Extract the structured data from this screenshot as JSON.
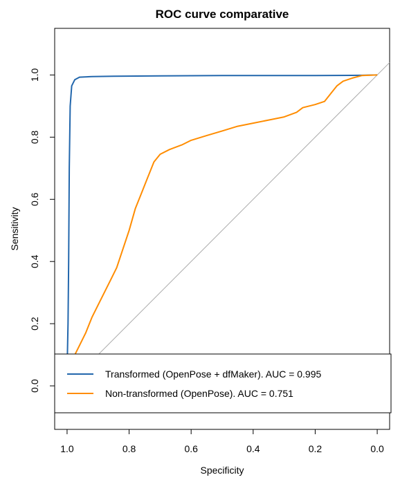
{
  "chart_data": {
    "type": "line",
    "title": "ROC curve comparative",
    "xlabel": "Specificity",
    "ylabel": "Sensitivity",
    "xlim": [
      1.04,
      -0.04
    ],
    "ylim": [
      -0.14,
      1.15
    ],
    "x_reversed_display": true,
    "x_ticks": [
      0.0,
      0.2,
      0.4,
      0.6,
      0.8,
      1.0
    ],
    "x_tick_labels": [
      "0.0",
      "0.2",
      "0.4",
      "0.6",
      "0.8",
      "1.0"
    ],
    "y_ticks": [
      0.0,
      0.2,
      0.4,
      0.6,
      0.8,
      1.0
    ],
    "y_tick_labels": [
      "0.0",
      "0.2",
      "0.4",
      "0.6",
      "0.8",
      "1.0"
    ],
    "reference_line": {
      "color": "#aaaaaa",
      "from": [
        1.0,
        0.0
      ],
      "to": [
        0.0,
        1.0
      ]
    },
    "grid": false,
    "legend_position": "bottom",
    "series": [
      {
        "name": "Transformed (OpenPose + dfMaker). AUC =  0.995",
        "color": "#2166ac",
        "points": [
          [
            0.0,
            1.0
          ],
          [
            0.05,
            0.999
          ],
          [
            0.2,
            0.998
          ],
          [
            0.5,
            0.998
          ],
          [
            0.7,
            0.997
          ],
          [
            0.85,
            0.996
          ],
          [
            0.92,
            0.995
          ],
          [
            0.96,
            0.993
          ],
          [
            0.975,
            0.985
          ],
          [
            0.985,
            0.965
          ],
          [
            0.99,
            0.9
          ],
          [
            0.993,
            0.7
          ],
          [
            0.995,
            0.4
          ],
          [
            0.997,
            0.2
          ],
          [
            0.999,
            0.1
          ],
          [
            1.0,
            0.0
          ]
        ]
      },
      {
        "name": "Non-transformed (OpenPose). AUC =  0.751",
        "color": "#ff8c00",
        "points": [
          [
            0.0,
            1.0
          ],
          [
            0.05,
            0.998
          ],
          [
            0.08,
            0.99
          ],
          [
            0.11,
            0.98
          ],
          [
            0.13,
            0.965
          ],
          [
            0.15,
            0.94
          ],
          [
            0.17,
            0.915
          ],
          [
            0.2,
            0.905
          ],
          [
            0.24,
            0.895
          ],
          [
            0.26,
            0.88
          ],
          [
            0.3,
            0.865
          ],
          [
            0.35,
            0.855
          ],
          [
            0.4,
            0.845
          ],
          [
            0.45,
            0.835
          ],
          [
            0.5,
            0.82
          ],
          [
            0.55,
            0.805
          ],
          [
            0.6,
            0.79
          ],
          [
            0.63,
            0.775
          ],
          [
            0.67,
            0.76
          ],
          [
            0.7,
            0.745
          ],
          [
            0.72,
            0.72
          ],
          [
            0.74,
            0.67
          ],
          [
            0.76,
            0.62
          ],
          [
            0.78,
            0.57
          ],
          [
            0.8,
            0.5
          ],
          [
            0.82,
            0.44
          ],
          [
            0.84,
            0.38
          ],
          [
            0.86,
            0.34
          ],
          [
            0.88,
            0.3
          ],
          [
            0.9,
            0.26
          ],
          [
            0.92,
            0.22
          ],
          [
            0.94,
            0.17
          ],
          [
            0.96,
            0.13
          ],
          [
            0.98,
            0.09
          ],
          [
            0.99,
            0.05
          ],
          [
            1.0,
            0.0
          ]
        ]
      }
    ]
  }
}
